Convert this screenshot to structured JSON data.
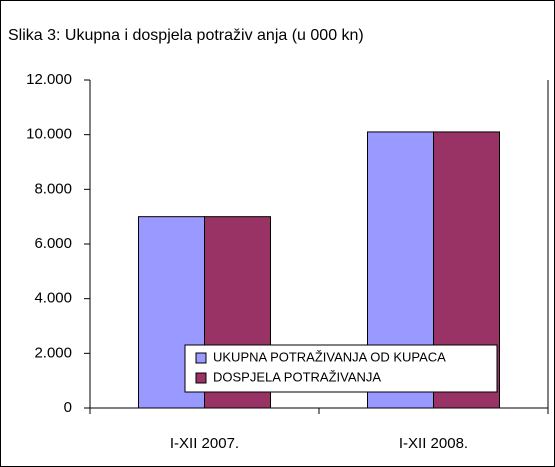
{
  "chart_data": {
    "type": "bar",
    "title": "Slika 3: Ukupna i dospjela potraživ anja (u 000 kn)",
    "categories": [
      "I-XII 2007.",
      "I-XII 2008."
    ],
    "series": [
      {
        "name": "UKUPNA POTRAŽIVANJA OD KUPACA",
        "color": "#9999ff",
        "values": [
          7000,
          10100
        ]
      },
      {
        "name": "DOSPJELA POTRAŽIVANJA",
        "color": "#993366",
        "values": [
          7000,
          10100
        ]
      }
    ],
    "ylim": [
      0,
      12000
    ],
    "yticks": [
      0,
      {
        "value": 2000,
        "label": "2.000"
      },
      {
        "value": 4000,
        "label": "4.000"
      },
      {
        "value": 6000,
        "label": "6.000"
      },
      {
        "value": 8000,
        "label": "8.000"
      },
      {
        "value": 10000,
        "label": "10.000"
      },
      {
        "value": 12000,
        "label": "12.000"
      }
    ],
    "grid": false,
    "legend": "bottom"
  }
}
